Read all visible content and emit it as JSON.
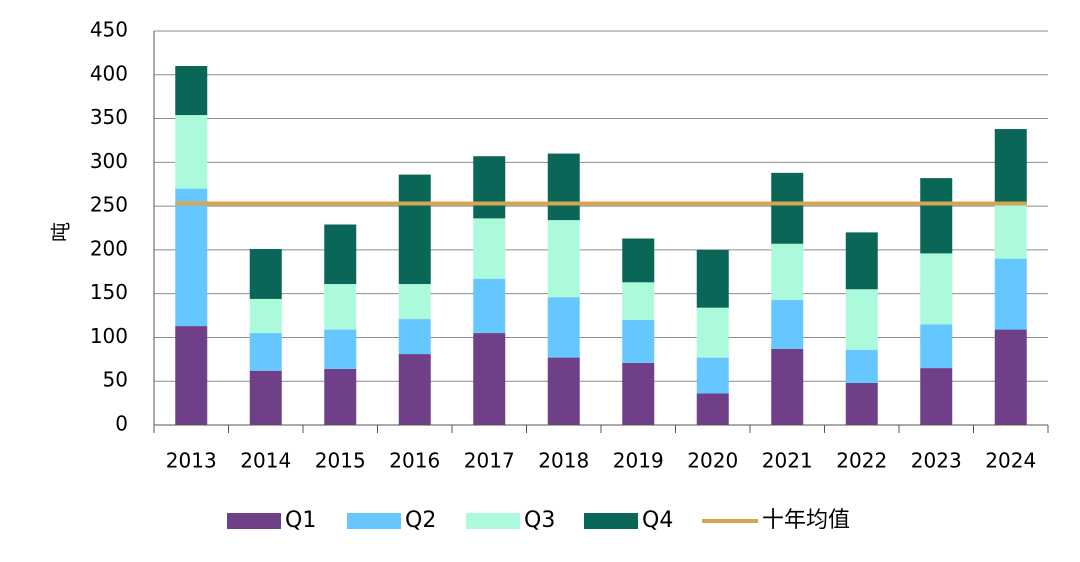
{
  "chart_data": {
    "type": "bar",
    "stacked": true,
    "categories": [
      "2013",
      "2014",
      "2015",
      "2016",
      "2017",
      "2018",
      "2019",
      "2020",
      "2021",
      "2022",
      "2023",
      "2024"
    ],
    "series": [
      {
        "name": "Q1",
        "color": "#6F3F87",
        "values": [
          113,
          62,
          64,
          81,
          105,
          77,
          71,
          36,
          87,
          48,
          65,
          109
        ]
      },
      {
        "name": "Q2",
        "color": "#66C7FF",
        "values": [
          157,
          43,
          45,
          40,
          62,
          69,
          49,
          41,
          56,
          38,
          50,
          81
        ]
      },
      {
        "name": "Q3",
        "color": "#AAFADB",
        "values": [
          84,
          39,
          52,
          40,
          69,
          88,
          43,
          57,
          64,
          69,
          81,
          62
        ]
      },
      {
        "name": "Q4",
        "color": "#0A6656",
        "values": [
          56,
          57,
          68,
          125,
          71,
          76,
          50,
          66,
          81,
          65,
          86,
          86
        ]
      }
    ],
    "average_line": {
      "name": "十年均值",
      "color": "#D4A654",
      "value": 253
    },
    "ylabel": "吨",
    "xlabel": "",
    "title": "",
    "ylim": [
      0,
      450
    ],
    "yticks": [
      "0",
      "50",
      "100",
      "150",
      "200",
      "250",
      "300",
      "350",
      "400",
      "450"
    ],
    "grid": true,
    "legend": "bottom"
  }
}
